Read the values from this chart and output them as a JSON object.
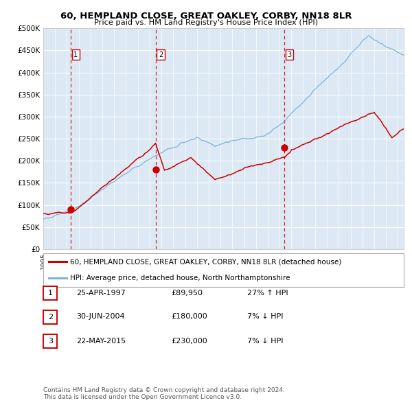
{
  "title": "60, HEMPLAND CLOSE, GREAT OAKLEY, CORBY, NN18 8LR",
  "subtitle": "Price paid vs. HM Land Registry's House Price Index (HPI)",
  "plot_bg_color": "#dce9f5",
  "grid_color": "#ffffff",
  "red_line_color": "#cc0000",
  "blue_line_color": "#7fb3d3",
  "ylabel_ticks": [
    "£0",
    "£50K",
    "£100K",
    "£150K",
    "£200K",
    "£250K",
    "£300K",
    "£350K",
    "£400K",
    "£450K",
    "£500K"
  ],
  "ytick_values": [
    0,
    50000,
    100000,
    150000,
    200000,
    250000,
    300000,
    350000,
    400000,
    450000,
    500000
  ],
  "xmin": 1995.0,
  "xmax": 2025.5,
  "ymin": 0,
  "ymax": 500000,
  "sales": [
    {
      "date_num": 1997.32,
      "price": 89950,
      "label": "1"
    },
    {
      "date_num": 2004.5,
      "price": 180000,
      "label": "2"
    },
    {
      "date_num": 2015.39,
      "price": 230000,
      "label": "3"
    }
  ],
  "legend_entries": [
    {
      "color": "#cc0000",
      "label": "60, HEMPLAND CLOSE, GREAT OAKLEY, CORBY, NN18 8LR (detached house)"
    },
    {
      "color": "#7fb3d3",
      "label": "HPI: Average price, detached house, North Northamptonshire"
    }
  ],
  "table_rows": [
    {
      "num": "1",
      "date": "25-APR-1997",
      "price": "£89,950",
      "hpi": "27% ↑ HPI"
    },
    {
      "num": "2",
      "date": "30-JUN-2004",
      "price": "£180,000",
      "hpi": "7% ↓ HPI"
    },
    {
      "num": "3",
      "date": "22-MAY-2015",
      "price": "£230,000",
      "hpi": "7% ↓ HPI"
    }
  ],
  "footer": "Contains HM Land Registry data © Crown copyright and database right 2024.\nThis data is licensed under the Open Government Licence v3.0."
}
